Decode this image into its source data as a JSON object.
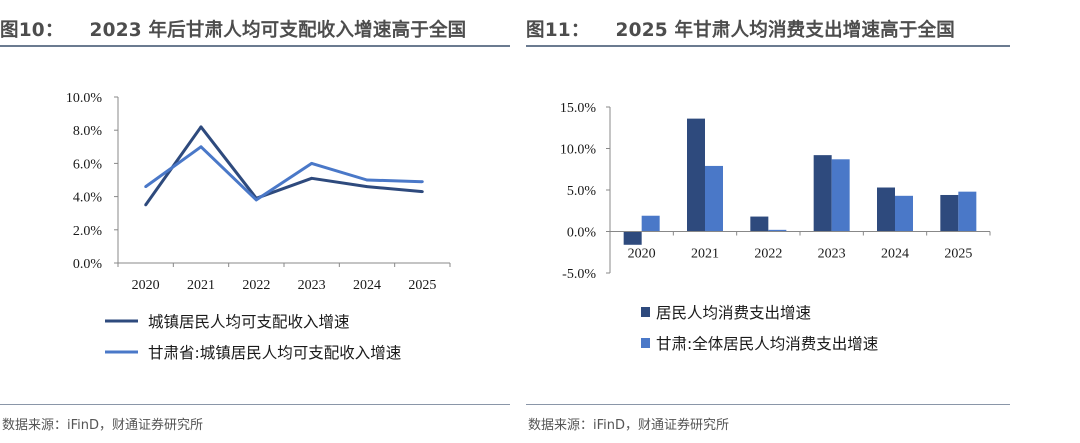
{
  "colors": {
    "dark": "#2e4a7d",
    "light": "#4a78c8",
    "axis": "#888888"
  },
  "charts": [
    {
      "fig_label": "图10：",
      "title": "2023 年后甘肃人均可支配收入增速高于全国",
      "source": "数据来源：iFinD，财通证券研究所"
    },
    {
      "fig_label": "图11：",
      "title": "2025 年甘肃人均消费支出增速高于全国",
      "source": "数据来源：iFinD，财通证券研究所"
    }
  ],
  "chart_data": [
    {
      "type": "line",
      "categories": [
        "2020",
        "2021",
        "2022",
        "2023",
        "2024",
        "2025"
      ],
      "series": [
        {
          "name": "城镇居民人均可支配收入增速",
          "color": "#2e4a7d",
          "values": [
            3.5,
            8.2,
            3.9,
            5.1,
            4.6,
            4.3
          ]
        },
        {
          "name": "甘肃省:城镇居民人均可支配收入增速",
          "color": "#4a78c8",
          "values": [
            4.6,
            7.0,
            3.8,
            6.0,
            5.0,
            4.9
          ]
        }
      ],
      "ylim": [
        0,
        10
      ],
      "yticks": [
        "0.0%",
        "2.0%",
        "4.0%",
        "6.0%",
        "8.0%",
        "10.0%"
      ],
      "grid": false,
      "legend": "bottom"
    },
    {
      "type": "bar",
      "categories": [
        "2020",
        "2021",
        "2022",
        "2023",
        "2024",
        "2025"
      ],
      "series": [
        {
          "name": "居民人均消费支出增速",
          "color": "#2e4a7d",
          "values": [
            -1.6,
            13.6,
            1.8,
            9.2,
            5.3,
            4.4
          ]
        },
        {
          "name": "甘肃:全体居民人均消费支出增速",
          "color": "#4a78c8",
          "values": [
            1.9,
            7.9,
            0.2,
            8.7,
            4.3,
            4.8
          ]
        }
      ],
      "ylim": [
        -5,
        15
      ],
      "yticks": [
        "-5.0%",
        "0.0%",
        "5.0%",
        "10.0%",
        "15.0%"
      ],
      "grid": false,
      "legend": "bottom"
    }
  ]
}
